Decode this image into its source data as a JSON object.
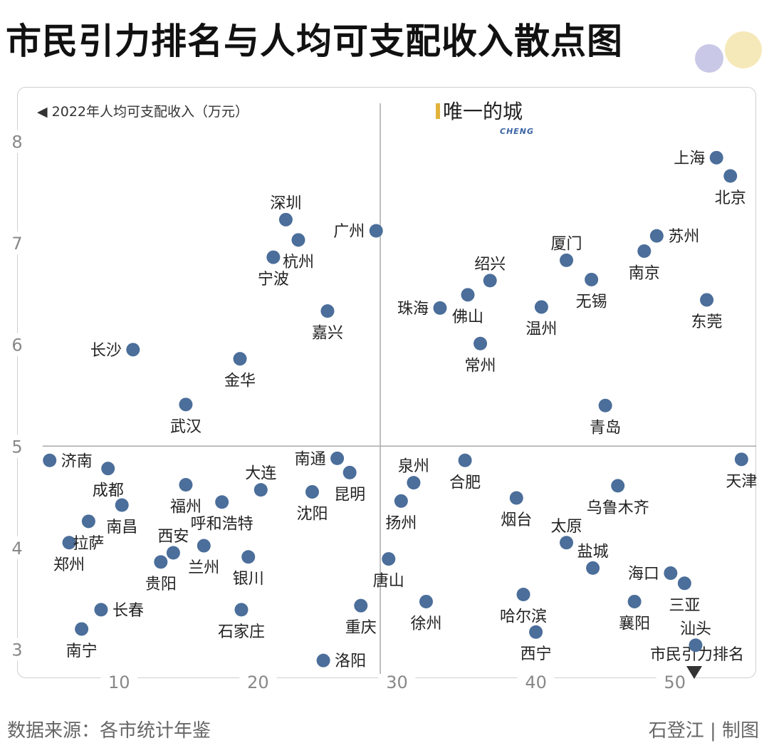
{
  "title": "市民引力排名与人均可支配收入散点图",
  "footer": {
    "source": "数据来源：各市统计年鉴",
    "credit": "石登江 | 制图"
  },
  "brand": {
    "name": "唯一的城",
    "sub": "CHENG"
  },
  "colors": {
    "point": "#4b6e9a",
    "axis": "#aaaaaa",
    "tick": "#888888",
    "label": "#222222"
  },
  "chart_data": {
    "type": "scatter",
    "xlabel": "市民引力排名",
    "ylabel": "◀ 2022年人均可支配收入（万元）",
    "xlim": [
      4.5,
      55.5
    ],
    "ylim": [
      2.8,
      8.2
    ],
    "xticks": [
      10,
      20,
      30,
      40,
      50
    ],
    "yticks": [
      3,
      4,
      5,
      6,
      7,
      8
    ],
    "quadrant_lines": {
      "x": 28.8,
      "y": 5
    },
    "points": [
      {
        "name": "上海",
        "x": 53,
        "y": 7.84,
        "label_pos": "left"
      },
      {
        "name": "北京",
        "x": 54,
        "y": 7.66,
        "label_pos": "below"
      },
      {
        "name": "苏州",
        "x": 48.7,
        "y": 7.07,
        "label_pos": "right"
      },
      {
        "name": "南京",
        "x": 47.8,
        "y": 6.92,
        "label_pos": "below"
      },
      {
        "name": "东莞",
        "x": 52.3,
        "y": 6.44,
        "label_pos": "below"
      },
      {
        "name": "厦门",
        "x": 42.2,
        "y": 6.83,
        "label_pos": "above"
      },
      {
        "name": "无锡",
        "x": 44,
        "y": 6.64,
        "label_pos": "below"
      },
      {
        "name": "温州",
        "x": 40.4,
        "y": 6.37,
        "label_pos": "below"
      },
      {
        "name": "绍兴",
        "x": 36.7,
        "y": 6.63,
        "label_pos": "above"
      },
      {
        "name": "佛山",
        "x": 35.1,
        "y": 6.49,
        "label_pos": "below"
      },
      {
        "name": "珠海",
        "x": 33.1,
        "y": 6.36,
        "label_pos": "left"
      },
      {
        "name": "常州",
        "x": 36,
        "y": 6.01,
        "label_pos": "below"
      },
      {
        "name": "青岛",
        "x": 45,
        "y": 5.4,
        "label_pos": "below"
      },
      {
        "name": "广州",
        "x": 28.5,
        "y": 7.12,
        "label_pos": "left"
      },
      {
        "name": "深圳",
        "x": 22,
        "y": 7.23,
        "label_pos": "above"
      },
      {
        "name": "杭州",
        "x": 22.9,
        "y": 7.03,
        "label_pos": "below"
      },
      {
        "name": "宁波",
        "x": 21.1,
        "y": 6.86,
        "label_pos": "below"
      },
      {
        "name": "嘉兴",
        "x": 25,
        "y": 6.33,
        "label_pos": "below"
      },
      {
        "name": "长沙",
        "x": 11,
        "y": 5.95,
        "label_pos": "left"
      },
      {
        "name": "金华",
        "x": 18.7,
        "y": 5.86,
        "label_pos": "below"
      },
      {
        "name": "武汉",
        "x": 14.8,
        "y": 5.41,
        "label_pos": "below"
      },
      {
        "name": "天津",
        "x": 54.8,
        "y": 4.87,
        "label_pos": "below"
      },
      {
        "name": "乌鲁木齐",
        "x": 45.9,
        "y": 4.61,
        "label_pos": "below"
      },
      {
        "name": "合肥",
        "x": 34.9,
        "y": 4.86,
        "label_pos": "below"
      },
      {
        "name": "泉州",
        "x": 31.2,
        "y": 4.64,
        "label_pos": "above"
      },
      {
        "name": "扬州",
        "x": 30.3,
        "y": 4.46,
        "label_pos": "below"
      },
      {
        "name": "烟台",
        "x": 38.6,
        "y": 4.49,
        "label_pos": "below"
      },
      {
        "name": "太原",
        "x": 42.2,
        "y": 4.05,
        "label_pos": "above"
      },
      {
        "name": "盐城",
        "x": 44.1,
        "y": 3.8,
        "label_pos": "above"
      },
      {
        "name": "海口",
        "x": 49.7,
        "y": 3.75,
        "label_pos": "left"
      },
      {
        "name": "三亚",
        "x": 50.7,
        "y": 3.65,
        "label_pos": "below"
      },
      {
        "name": "襄阳",
        "x": 47.1,
        "y": 3.47,
        "label_pos": "below"
      },
      {
        "name": "哈尔滨",
        "x": 39.1,
        "y": 3.54,
        "label_pos": "below"
      },
      {
        "name": "西宁",
        "x": 40,
        "y": 3.17,
        "label_pos": "below"
      },
      {
        "name": "汕头",
        "x": 51.5,
        "y": 3.04,
        "label_pos": "above"
      },
      {
        "name": "唐山",
        "x": 29.4,
        "y": 3.89,
        "label_pos": "below"
      },
      {
        "name": "徐州",
        "x": 32.1,
        "y": 3.47,
        "label_pos": "below"
      },
      {
        "name": "重庆",
        "x": 27.4,
        "y": 3.43,
        "label_pos": "below"
      },
      {
        "name": "洛阳",
        "x": 24.7,
        "y": 2.89,
        "label_pos": "right"
      },
      {
        "name": "南通",
        "x": 25.7,
        "y": 4.88,
        "label_pos": "left"
      },
      {
        "name": "昆明",
        "x": 26.6,
        "y": 4.74,
        "label_pos": "below"
      },
      {
        "name": "沈阳",
        "x": 23.9,
        "y": 4.55,
        "label_pos": "below"
      },
      {
        "name": "大连",
        "x": 20.2,
        "y": 4.57,
        "label_pos": "above"
      },
      {
        "name": "呼和浩特",
        "x": 17.4,
        "y": 4.45,
        "label_pos": "below"
      },
      {
        "name": "福州",
        "x": 14.8,
        "y": 4.62,
        "label_pos": "below"
      },
      {
        "name": "兰州",
        "x": 16.1,
        "y": 4.02,
        "label_pos": "below"
      },
      {
        "name": "银川",
        "x": 19.3,
        "y": 3.91,
        "label_pos": "below"
      },
      {
        "name": "西安",
        "x": 13.9,
        "y": 3.95,
        "label_pos": "above"
      },
      {
        "name": "贵阳",
        "x": 13,
        "y": 3.86,
        "label_pos": "below"
      },
      {
        "name": "南昌",
        "x": 10.2,
        "y": 4.42,
        "label_pos": "below"
      },
      {
        "name": "成都",
        "x": 9.2,
        "y": 4.78,
        "label_pos": "below"
      },
      {
        "name": "济南",
        "x": 5,
        "y": 4.86,
        "label_pos": "right"
      },
      {
        "name": "拉萨",
        "x": 7.8,
        "y": 4.26,
        "label_pos": "below"
      },
      {
        "name": "郑州",
        "x": 6.4,
        "y": 4.05,
        "label_pos": "below"
      },
      {
        "name": "长春",
        "x": 8.7,
        "y": 3.39,
        "label_pos": "right"
      },
      {
        "name": "南宁",
        "x": 7.3,
        "y": 3.2,
        "label_pos": "below"
      },
      {
        "name": "石家庄",
        "x": 18.8,
        "y": 3.39,
        "label_pos": "below"
      }
    ]
  }
}
